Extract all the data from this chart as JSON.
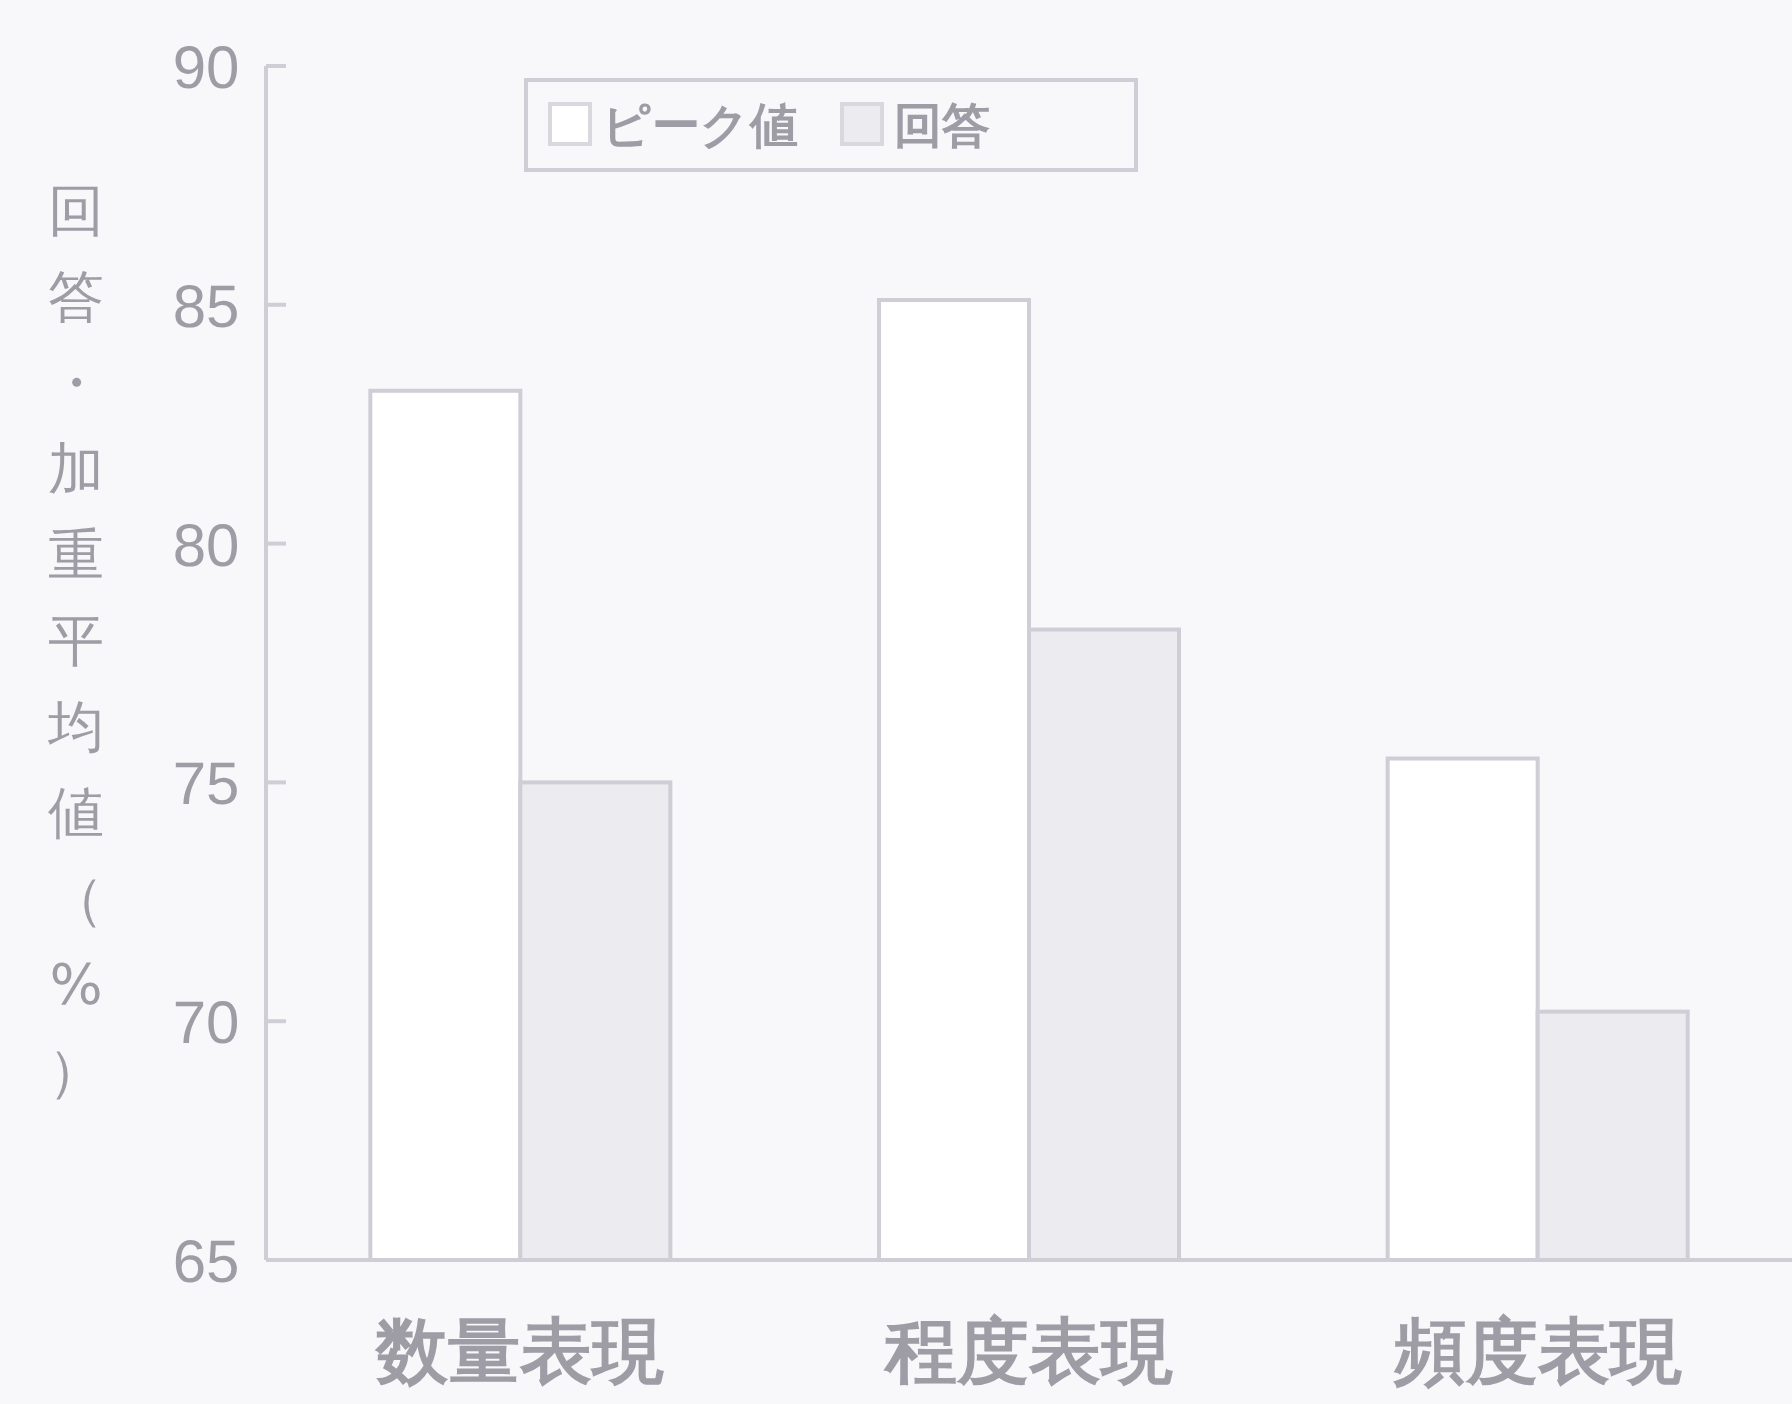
{
  "chart_data": {
    "type": "bar",
    "ylabel": "回答・加重平均値（%）",
    "categories": [
      "数量表現",
      "程度表現",
      "頻度表現"
    ],
    "series": [
      {
        "name": "ピーク値",
        "color": "#ffffff",
        "values": [
          83.2,
          85.1,
          75.5
        ]
      },
      {
        "name": "回答",
        "color": "#ececf0",
        "values": [
          75.0,
          78.2,
          70.2
        ]
      }
    ],
    "ylim": [
      65,
      90
    ],
    "yticks": [
      65,
      70,
      75,
      80,
      85,
      90
    ],
    "grid": false,
    "legend": "top"
  }
}
